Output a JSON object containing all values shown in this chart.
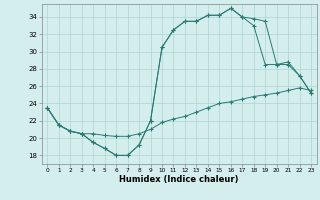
{
  "xlabel": "Humidex (Indice chaleur)",
  "xlim": [
    -0.5,
    23.5
  ],
  "ylim": [
    17,
    35.5
  ],
  "xticks": [
    0,
    1,
    2,
    3,
    4,
    5,
    6,
    7,
    8,
    9,
    10,
    11,
    12,
    13,
    14,
    15,
    16,
    17,
    18,
    19,
    20,
    21,
    22,
    23
  ],
  "yticks": [
    18,
    20,
    22,
    24,
    26,
    28,
    30,
    32,
    34
  ],
  "line_color": "#2a7a70",
  "bg_color": "#d4eeee",
  "grid_color": "#aed4d0",
  "curve1_x": [
    0,
    1,
    2,
    3,
    4,
    5,
    6,
    7,
    8,
    9,
    10,
    11,
    12,
    13,
    14,
    15,
    16,
    17,
    18,
    19,
    20,
    21,
    22,
    23
  ],
  "curve1_y": [
    23.5,
    21.5,
    20.8,
    20.5,
    19.5,
    18.8,
    18.0,
    18.0,
    19.2,
    22.0,
    30.5,
    32.5,
    33.5,
    33.5,
    34.2,
    34.2,
    35.0,
    34.0,
    33.0,
    28.5,
    28.5,
    28.8,
    27.2,
    25.2
  ],
  "curve2_x": [
    0,
    1,
    2,
    3,
    4,
    5,
    6,
    7,
    8,
    9,
    10,
    11,
    12,
    13,
    14,
    15,
    16,
    17,
    18,
    19,
    20,
    21,
    22,
    23
  ],
  "curve2_y": [
    23.5,
    21.5,
    20.8,
    20.5,
    19.5,
    18.8,
    18.0,
    18.0,
    19.2,
    22.0,
    30.5,
    32.5,
    33.5,
    33.5,
    34.2,
    34.2,
    35.0,
    34.0,
    33.8,
    33.5,
    28.5,
    28.5,
    27.2,
    25.2
  ],
  "curve3_x": [
    0,
    1,
    2,
    3,
    4,
    5,
    6,
    7,
    8,
    9,
    10,
    11,
    12,
    13,
    14,
    15,
    16,
    17,
    18,
    19,
    20,
    21,
    22,
    23
  ],
  "curve3_y": [
    23.5,
    21.5,
    20.8,
    20.5,
    20.5,
    20.3,
    20.2,
    20.2,
    20.5,
    21.0,
    21.8,
    22.2,
    22.5,
    23.0,
    23.5,
    24.0,
    24.2,
    24.5,
    24.8,
    25.0,
    25.2,
    25.5,
    25.8,
    25.5
  ]
}
